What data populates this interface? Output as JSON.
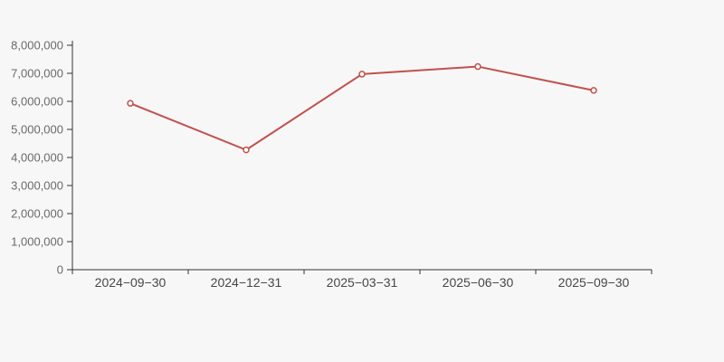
{
  "chart_data": {
    "type": "line",
    "title": "",
    "xlabel": "",
    "ylabel": "",
    "categories": [
      "2024−09−30",
      "2024−12−31",
      "2025−03−31",
      "2025−06−30",
      "2025−09−30"
    ],
    "values": [
      5930000,
      4270000,
      6970000,
      7240000,
      6390000
    ],
    "ylim": [
      0,
      8000000
    ],
    "ytick_step": 1000000,
    "ytick_labels": [
      "0",
      "1,000,000",
      "2,000,000",
      "3,000,000",
      "4,000,000",
      "5,000,000",
      "6,000,000",
      "7,000,000",
      "8,000,000"
    ],
    "grid": false,
    "legend_visible": false,
    "marker_style": "open-circle",
    "colors": {
      "line": "#c2504d",
      "marker_fill": "#fcfcfc",
      "axis": "#333333",
      "ytick_label": "#6a6a6a",
      "xtick_label": "#474747",
      "background": "#f7f7f7"
    }
  }
}
